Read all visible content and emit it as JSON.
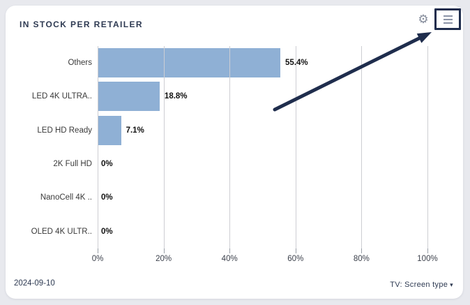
{
  "card": {
    "title": "IN STOCK PER RETAILER",
    "header_icons": {
      "settings_glyph": "⚙"
    },
    "footer": {
      "date": "2024-09-10",
      "filter_label": "TV: Screen type",
      "caret_icon": "▾"
    }
  },
  "chart_data": {
    "type": "bar",
    "orientation": "horizontal",
    "title": "IN STOCK PER RETAILER",
    "categories": [
      "Others",
      "LED 4K ULTRA..",
      "LED HD Ready",
      "2K Full HD",
      "NanoCell 4K ..",
      "OLED 4K ULTR.."
    ],
    "values": [
      55.4,
      18.8,
      7.1,
      0,
      0,
      0
    ],
    "value_labels": [
      "55.4%",
      "18.8%",
      "7.1%",
      "0%",
      "0%",
      "0%"
    ],
    "x_ticks": {
      "labels": [
        "0%",
        "20%",
        "40%",
        "60%",
        "80%",
        "100%"
      ],
      "positions": [
        0,
        20,
        40,
        60,
        80,
        100
      ]
    },
    "xlim": [
      0,
      100
    ],
    "grid": true,
    "legend": "none",
    "bar_color": "#8fb0d5"
  },
  "annotation": {
    "arrow": {
      "from": [
        394,
        157
      ],
      "to": [
        619,
        46
      ],
      "color": "#1f2d4d"
    },
    "highlight_box_color": "#1f2d4d"
  },
  "colors": {
    "page_bg": "#e8e9ee",
    "card_bg": "#ffffff",
    "accent_navy": "#1f2d4d",
    "bar_blue": "#8fb0d5",
    "grid_line": "#cdced3",
    "title_text": "#2e3a52"
  }
}
